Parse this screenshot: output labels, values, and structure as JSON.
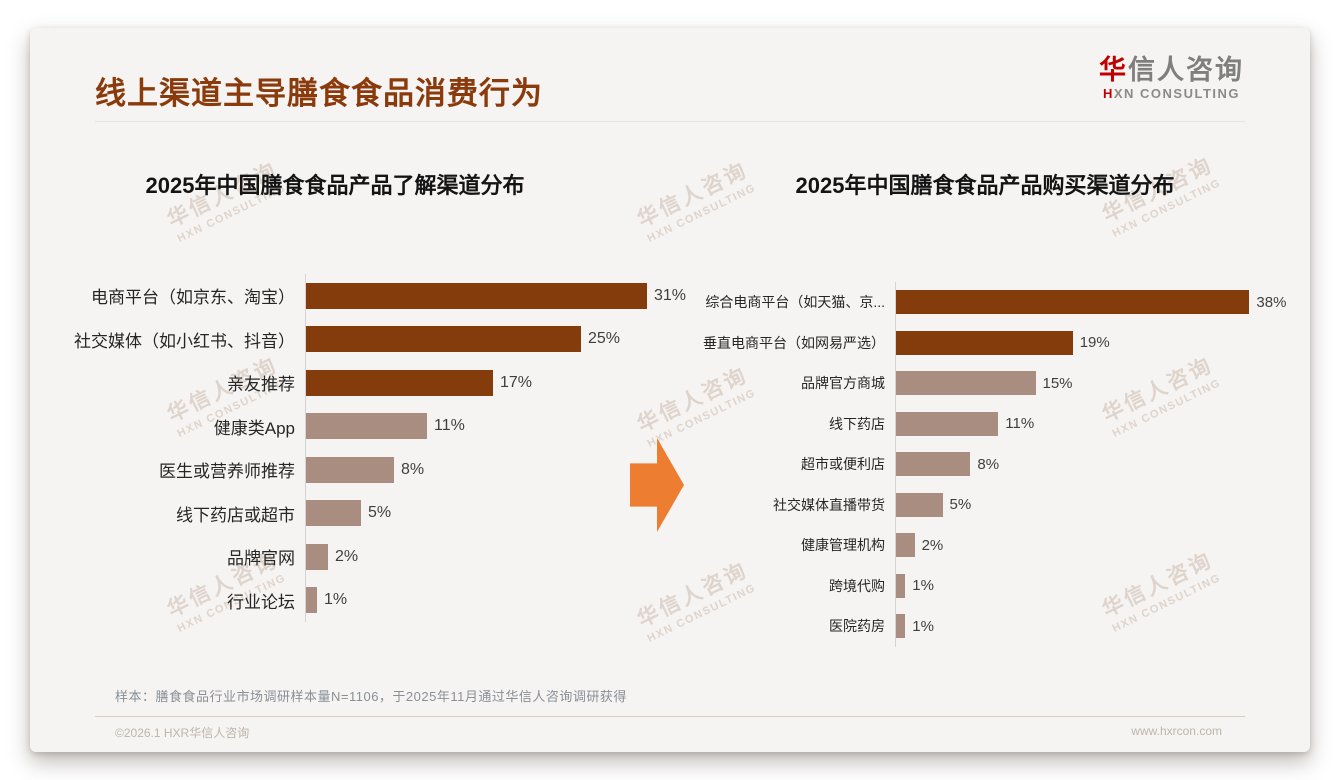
{
  "page": {
    "title": "线上渠道主导膳食食品消费行为",
    "logo": {
      "cn_accent": "华",
      "cn_rest": "信人咨询",
      "en": "HXN CONSULTING"
    },
    "watermark": {
      "line1": "华信人咨询",
      "line2": "HXN CONSULTING"
    },
    "footnote": "样本：膳食食品行业市场调研样本量N=1106，于2025年11月通过华信人咨询调研获得",
    "footer_left": "©2026.1 HXR华信人咨询",
    "footer_right": "www.hxrcon.com"
  },
  "colors": {
    "title": "#8B3A0B",
    "bar_dark": "#843C0C",
    "bar_light": "#A98D80",
    "arrow": "#ED7D31"
  },
  "chart_data": [
    {
      "type": "bar",
      "orientation": "horizontal",
      "title": "2025年中国膳食食品产品了解渠道分布",
      "categories": [
        "电商平台（如京东、淘宝）",
        "社交媒体（如小红书、抖音）",
        "亲友推荐",
        "健康类App",
        "医生或营养师推荐",
        "线下药店或超市",
        "品牌官网",
        "行业论坛"
      ],
      "values": [
        31,
        25,
        17,
        11,
        8,
        5,
        2,
        1
      ],
      "unit": "%",
      "highlight_count": 3,
      "xlim": [
        0,
        33
      ],
      "grid": false,
      "legend": "none",
      "value_labels": "outside-end"
    },
    {
      "type": "bar",
      "orientation": "horizontal",
      "title": "2025年中国膳食食品产品购买渠道分布",
      "categories": [
        "综合电商平台（如天猫、京...",
        "垂直电商平台（如网易严选）",
        "品牌官方商城",
        "线下药店",
        "超市或便利店",
        "社交媒体直播带货",
        "健康管理机构",
        "跨境代购",
        "医院药房"
      ],
      "values": [
        38,
        19,
        15,
        11,
        8,
        5,
        2,
        1,
        1
      ],
      "unit": "%",
      "highlight_count": 2,
      "xlim": [
        0,
        40
      ],
      "grid": false,
      "legend": "none",
      "value_labels": "outside-end"
    }
  ]
}
